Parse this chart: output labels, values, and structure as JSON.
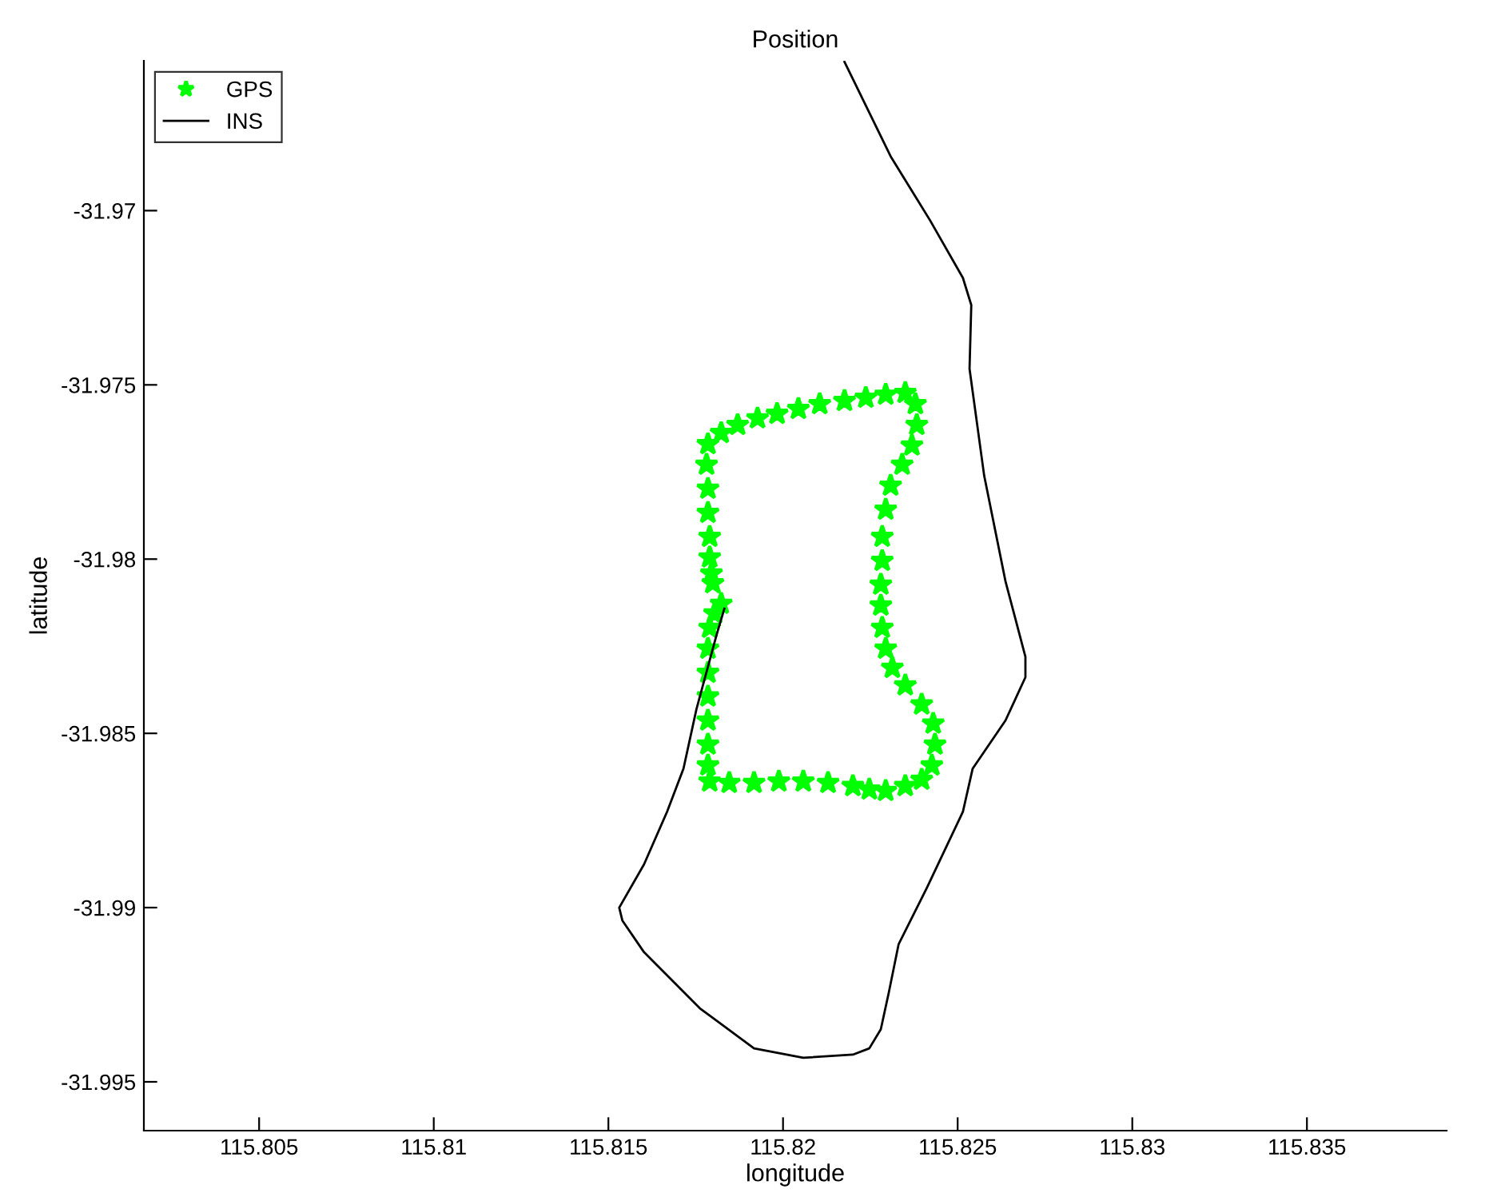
{
  "chart_data": {
    "type": "line",
    "title": "Position",
    "xlabel": "longitude",
    "ylabel": "latitude",
    "xlim": [
      115.8017,
      115.839
    ],
    "ylim": [
      -31.9964,
      -31.9657
    ],
    "xticks": [
      115.805,
      115.81,
      115.815,
      115.82,
      115.825,
      115.83,
      115.835
    ],
    "yticks": [
      -31.97,
      -31.975,
      -31.98,
      -31.985,
      -31.99,
      -31.995
    ],
    "grid": false,
    "legend": "top left",
    "series": [
      {
        "name": "GPS",
        "type": "scatter",
        "marker": "star",
        "color": "#00ff00",
        "x": [
          115.81823,
          115.81804,
          115.8179,
          115.81785,
          115.81785,
          115.81785,
          115.81785,
          115.81785,
          115.81785,
          115.8179,
          115.81846,
          115.81917,
          115.81988,
          115.82058,
          115.82129,
          115.822,
          115.82247,
          115.82294,
          115.8235,
          115.82397,
          115.82426,
          115.82435,
          115.8243,
          115.82397,
          115.8235,
          115.82313,
          115.82294,
          115.82284,
          115.8228,
          115.8228,
          115.82284,
          115.82284,
          115.82294,
          115.82308,
          115.82341,
          115.82369,
          115.82383,
          115.82379,
          115.8235,
          115.82294,
          115.82237,
          115.82176,
          115.82105,
          115.82044,
          115.81983,
          115.81927,
          115.8187,
          115.81823,
          115.81785,
          115.81781,
          115.81785,
          115.81785,
          115.8179,
          115.8179,
          115.81795,
          115.81799
        ],
        "values": [
          -31.98128,
          -31.98156,
          -31.98197,
          -31.98257,
          -31.98326,
          -31.98394,
          -31.98463,
          -31.98532,
          -31.98592,
          -31.98638,
          -31.98642,
          -31.98642,
          -31.98638,
          -31.98638,
          -31.98642,
          -31.98651,
          -31.98661,
          -31.98665,
          -31.98651,
          -31.98633,
          -31.98592,
          -31.98532,
          -31.98472,
          -31.98417,
          -31.98362,
          -31.98312,
          -31.98257,
          -31.98197,
          -31.98133,
          -31.98073,
          -31.98005,
          -31.97936,
          -31.97858,
          -31.97789,
          -31.97729,
          -31.97674,
          -31.97615,
          -31.97555,
          -31.97523,
          -31.97528,
          -31.97537,
          -31.97546,
          -31.97555,
          -31.97569,
          -31.97583,
          -31.97596,
          -31.97615,
          -31.97638,
          -31.9767,
          -31.97729,
          -31.97798,
          -31.97867,
          -31.97936,
          -31.97995,
          -31.98041,
          -31.98069
        ]
      },
      {
        "name": "INS",
        "marker": "none",
        "line_style": "solid",
        "color": "#000000",
        "x": [
          115.82176,
          115.82308,
          115.82421,
          115.82515,
          115.82539,
          115.82534,
          115.82576,
          115.82637,
          115.82694,
          115.82694,
          115.82637,
          115.82543,
          115.82515,
          115.82411,
          115.82331,
          115.82303,
          115.8228,
          115.82247,
          115.822,
          115.82058,
          115.81917,
          115.81762,
          115.81602,
          115.8154,
          115.81531,
          115.81602,
          115.81668,
          115.81715,
          115.81752,
          115.81809,
          115.81832
        ],
        "values": [
          -31.96573,
          -31.96844,
          -31.97028,
          -31.97193,
          -31.97271,
          -31.97454,
          -31.97761,
          -31.98064,
          -31.9828,
          -31.98339,
          -31.98463,
          -31.98601,
          -31.98725,
          -31.98945,
          -31.99105,
          -31.99243,
          -31.99349,
          -31.99404,
          -31.99422,
          -31.99431,
          -31.99404,
          -31.99289,
          -31.99128,
          -31.99037,
          -31.99,
          -31.98876,
          -31.98725,
          -31.98601,
          -31.98431,
          -31.9822,
          -31.98142
        ]
      }
    ]
  }
}
